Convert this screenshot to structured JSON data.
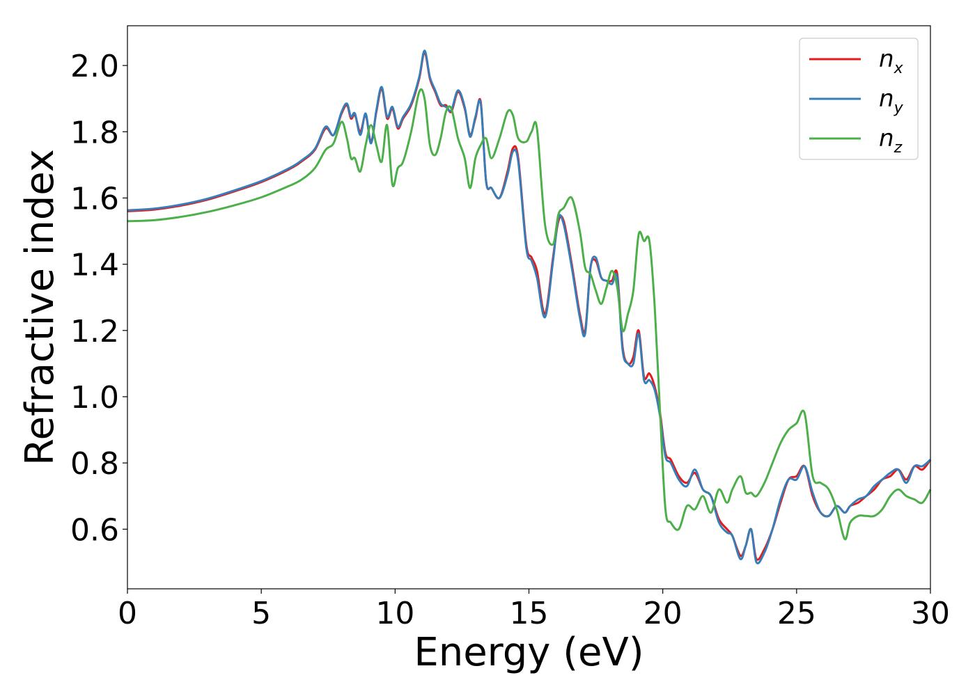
{
  "chart_data": {
    "type": "line",
    "title": "",
    "xlabel": "Energy (eV)",
    "ylabel": "Refractive index",
    "xlim": [
      0,
      30
    ],
    "ylim": [
      0.42,
      2.12
    ],
    "xticks": [
      0,
      5,
      10,
      15,
      20,
      25,
      30
    ],
    "xtick_labels": [
      "0",
      "5",
      "10",
      "15",
      "20",
      "25",
      "30"
    ],
    "yticks": [
      0.6,
      0.8,
      1.0,
      1.2,
      1.4,
      1.6,
      1.8,
      2.0
    ],
    "ytick_labels": [
      "0.6",
      "0.8",
      "1.0",
      "1.2",
      "1.4",
      "1.6",
      "1.8",
      "2.0"
    ],
    "grid": false,
    "legend_position": "top-right",
    "series": [
      {
        "name": "n",
        "subscript": "x",
        "color": "#e41a1c",
        "x": [
          0,
          1,
          2,
          3,
          4,
          5,
          6,
          6.5,
          7,
          7.4,
          7.7,
          8,
          8.2,
          8.35,
          8.5,
          8.7,
          8.9,
          9.1,
          9.3,
          9.5,
          9.7,
          9.9,
          10.1,
          10.3,
          10.6,
          10.9,
          11.1,
          11.3,
          11.5,
          11.7,
          11.9,
          12.1,
          12.35,
          12.6,
          12.8,
          13.0,
          13.2,
          13.4,
          13.6,
          13.9,
          14.2,
          14.4,
          14.6,
          14.9,
          15.1,
          15.3,
          15.6,
          15.9,
          16.1,
          16.3,
          16.6,
          16.9,
          17.1,
          17.3,
          17.5,
          17.7,
          17.9,
          18.1,
          18.3,
          18.5,
          18.7,
          18.9,
          19.1,
          19.3,
          19.5,
          19.7,
          19.9,
          20.1,
          20.3,
          20.6,
          20.9,
          21.2,
          21.5,
          21.8,
          22.1,
          22.4,
          22.6,
          22.9,
          23.1,
          23.3,
          23.5,
          23.8,
          24.1,
          24.4,
          24.7,
          25.0,
          25.3,
          25.6,
          25.9,
          26.2,
          26.5,
          26.8,
          27.0,
          27.3,
          27.6,
          27.9,
          28.2,
          28.5,
          28.8,
          29.1,
          29.4,
          29.7,
          30
        ],
        "values": [
          1.56,
          1.565,
          1.577,
          1.595,
          1.62,
          1.648,
          1.685,
          1.71,
          1.745,
          1.81,
          1.79,
          1.855,
          1.88,
          1.84,
          1.85,
          1.8,
          1.85,
          1.77,
          1.86,
          1.93,
          1.84,
          1.87,
          1.81,
          1.84,
          1.88,
          1.96,
          2.04,
          1.96,
          1.92,
          1.88,
          1.88,
          1.86,
          1.92,
          1.87,
          1.79,
          1.84,
          1.89,
          1.65,
          1.63,
          1.6,
          1.68,
          1.75,
          1.72,
          1.46,
          1.42,
          1.38,
          1.25,
          1.42,
          1.53,
          1.53,
          1.4,
          1.25,
          1.2,
          1.39,
          1.41,
          1.36,
          1.35,
          1.35,
          1.37,
          1.15,
          1.1,
          1.12,
          1.2,
          1.06,
          1.07,
          1.03,
          0.95,
          0.83,
          0.81,
          0.76,
          0.74,
          0.77,
          0.72,
          0.7,
          0.63,
          0.6,
          0.58,
          0.52,
          0.55,
          0.6,
          0.51,
          0.54,
          0.6,
          0.68,
          0.75,
          0.76,
          0.79,
          0.7,
          0.65,
          0.64,
          0.67,
          0.65,
          0.67,
          0.68,
          0.7,
          0.72,
          0.75,
          0.76,
          0.78,
          0.75,
          0.79,
          0.78,
          0.81
        ]
      },
      {
        "name": "n",
        "subscript": "y",
        "color": "#377eb8",
        "x": [
          0,
          1,
          2,
          3,
          4,
          5,
          6,
          6.5,
          7,
          7.4,
          7.7,
          8,
          8.2,
          8.35,
          8.5,
          8.7,
          8.9,
          9.1,
          9.3,
          9.5,
          9.7,
          9.9,
          10.1,
          10.3,
          10.6,
          10.9,
          11.1,
          11.3,
          11.5,
          11.7,
          11.9,
          12.1,
          12.35,
          12.6,
          12.8,
          13.0,
          13.2,
          13.4,
          13.6,
          13.9,
          14.2,
          14.4,
          14.6,
          14.9,
          15.1,
          15.3,
          15.6,
          15.9,
          16.1,
          16.3,
          16.6,
          16.9,
          17.1,
          17.3,
          17.5,
          17.7,
          17.9,
          18.1,
          18.3,
          18.5,
          18.7,
          18.9,
          19.1,
          19.3,
          19.5,
          19.7,
          19.9,
          20.1,
          20.3,
          20.6,
          20.9,
          21.2,
          21.5,
          21.8,
          22.1,
          22.4,
          22.6,
          22.9,
          23.1,
          23.3,
          23.5,
          23.8,
          24.1,
          24.4,
          24.7,
          25.0,
          25.3,
          25.6,
          25.9,
          26.2,
          26.5,
          26.8,
          27.0,
          27.3,
          27.6,
          27.9,
          28.2,
          28.5,
          28.8,
          29.1,
          29.4,
          29.7,
          30
        ],
        "values": [
          1.563,
          1.568,
          1.58,
          1.598,
          1.623,
          1.651,
          1.688,
          1.713,
          1.748,
          1.815,
          1.79,
          1.86,
          1.885,
          1.845,
          1.855,
          1.79,
          1.855,
          1.765,
          1.865,
          1.935,
          1.845,
          1.875,
          1.815,
          1.845,
          1.885,
          1.965,
          2.045,
          1.965,
          1.925,
          1.885,
          1.875,
          1.865,
          1.925,
          1.875,
          1.785,
          1.845,
          1.885,
          1.65,
          1.63,
          1.6,
          1.67,
          1.74,
          1.71,
          1.45,
          1.41,
          1.36,
          1.24,
          1.41,
          1.54,
          1.52,
          1.39,
          1.24,
          1.19,
          1.39,
          1.42,
          1.36,
          1.35,
          1.34,
          1.36,
          1.14,
          1.1,
          1.1,
          1.19,
          1.05,
          1.05,
          1.02,
          0.94,
          0.82,
          0.8,
          0.75,
          0.73,
          0.78,
          0.72,
          0.7,
          0.62,
          0.59,
          0.58,
          0.51,
          0.55,
          0.6,
          0.5,
          0.53,
          0.6,
          0.69,
          0.75,
          0.75,
          0.79,
          0.71,
          0.65,
          0.64,
          0.67,
          0.65,
          0.67,
          0.69,
          0.7,
          0.73,
          0.75,
          0.77,
          0.78,
          0.74,
          0.79,
          0.79,
          0.81
        ]
      },
      {
        "name": "n",
        "subscript": "z",
        "color": "#4daf4a",
        "x": [
          0,
          1,
          2,
          3,
          4,
          5,
          6,
          6.5,
          7,
          7.4,
          7.7,
          8,
          8.2,
          8.35,
          8.5,
          8.7,
          8.9,
          9.1,
          9.3,
          9.5,
          9.7,
          9.9,
          10.1,
          10.3,
          10.6,
          10.9,
          11.1,
          11.3,
          11.5,
          11.7,
          11.9,
          12.1,
          12.35,
          12.6,
          12.8,
          13.0,
          13.2,
          13.4,
          13.6,
          13.9,
          14.2,
          14.4,
          14.6,
          14.9,
          15.1,
          15.3,
          15.6,
          15.9,
          16.1,
          16.3,
          16.6,
          16.9,
          17.1,
          17.3,
          17.5,
          17.7,
          17.9,
          18.1,
          18.3,
          18.5,
          18.7,
          18.9,
          19.1,
          19.3,
          19.5,
          19.7,
          19.9,
          20.1,
          20.3,
          20.6,
          20.9,
          21.2,
          21.5,
          21.8,
          22.1,
          22.4,
          22.6,
          22.9,
          23.1,
          23.3,
          23.5,
          23.8,
          24.1,
          24.4,
          24.7,
          25.0,
          25.3,
          25.6,
          25.9,
          26.2,
          26.5,
          26.8,
          27.0,
          27.3,
          27.6,
          27.9,
          28.2,
          28.5,
          28.8,
          29.1,
          29.4,
          29.7,
          30
        ],
        "values": [
          1.53,
          1.533,
          1.543,
          1.558,
          1.578,
          1.602,
          1.635,
          1.655,
          1.69,
          1.745,
          1.765,
          1.83,
          1.78,
          1.72,
          1.72,
          1.68,
          1.76,
          1.82,
          1.76,
          1.71,
          1.82,
          1.64,
          1.69,
          1.71,
          1.8,
          1.92,
          1.9,
          1.76,
          1.73,
          1.78,
          1.86,
          1.87,
          1.78,
          1.72,
          1.63,
          1.72,
          1.76,
          1.78,
          1.72,
          1.78,
          1.86,
          1.85,
          1.78,
          1.77,
          1.8,
          1.81,
          1.52,
          1.46,
          1.55,
          1.57,
          1.6,
          1.5,
          1.39,
          1.37,
          1.32,
          1.28,
          1.33,
          1.38,
          1.33,
          1.2,
          1.25,
          1.32,
          1.49,
          1.47,
          1.47,
          1.27,
          0.95,
          0.66,
          0.62,
          0.6,
          0.67,
          0.66,
          0.7,
          0.65,
          0.72,
          0.68,
          0.72,
          0.76,
          0.71,
          0.71,
          0.7,
          0.74,
          0.8,
          0.86,
          0.9,
          0.92,
          0.95,
          0.76,
          0.74,
          0.72,
          0.66,
          0.57,
          0.62,
          0.64,
          0.64,
          0.64,
          0.66,
          0.7,
          0.72,
          0.7,
          0.69,
          0.68,
          0.72
        ]
      }
    ]
  }
}
